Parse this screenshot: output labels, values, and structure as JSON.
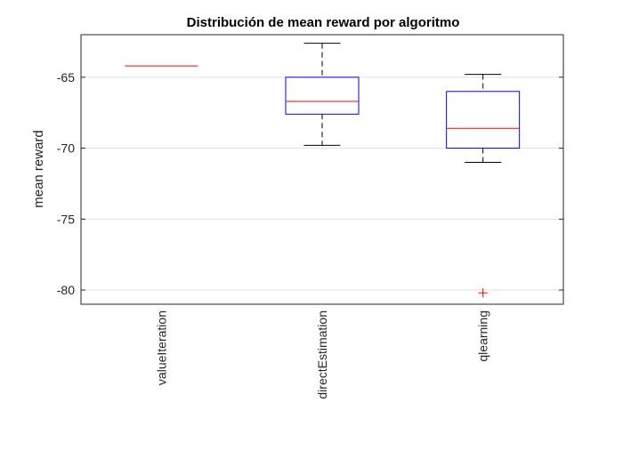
{
  "chart_data": {
    "type": "boxplot",
    "title": "Distribución de mean reward por algoritmo",
    "xlabel": "",
    "ylabel": "mean reward",
    "ylim": [
      -81,
      -62
    ],
    "yticks": [
      -65,
      -70,
      -75,
      -80
    ],
    "ytick_labels": [
      "-65",
      "-70",
      "-75",
      "-80"
    ],
    "grid": "horizontal",
    "categories": [
      "valueIteration",
      "directEstimation",
      "qlearning"
    ],
    "boxes": [
      {
        "min": -64.2,
        "q1": -64.2,
        "median": -64.2,
        "q3": -64.2,
        "max": -64.2,
        "outliers": []
      },
      {
        "min": -69.8,
        "q1": -67.6,
        "median": -66.7,
        "q3": -65.0,
        "max": -62.6,
        "outliers": []
      },
      {
        "min": -71.0,
        "q1": -70.0,
        "median": -68.6,
        "q3": -66.0,
        "max": -64.8,
        "outliers": [
          -80.2
        ]
      }
    ],
    "colors": {
      "box": "#0000ff",
      "median": "#ff0000",
      "whisker": "#000000",
      "outlier": "#ff0000",
      "grid": "#dfdfdf",
      "axes": "#262626"
    }
  }
}
